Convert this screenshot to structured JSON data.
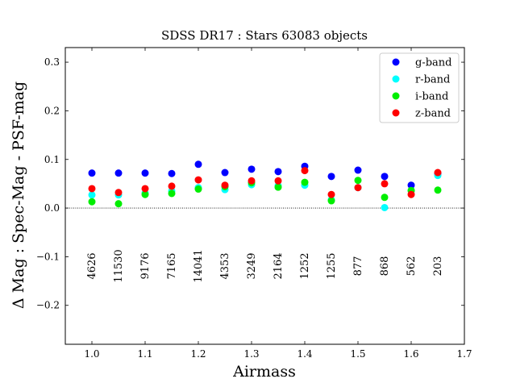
{
  "chart_data": {
    "type": "scatter",
    "title": "SDSS DR17 : Stars 63083 objects",
    "xlabel": "Airmass",
    "ylabel": "Δ Mag : Spec-Mag - PSF-mag",
    "xlim": [
      0.95,
      1.7
    ],
    "ylim": [
      -0.28,
      0.33
    ],
    "xticks": [
      "1.0",
      "1.1",
      "1.2",
      "1.3",
      "1.4",
      "1.5",
      "1.6",
      "1.7"
    ],
    "yticks": [
      "−0.2",
      "−0.1",
      "0.0",
      "0.1",
      "0.2",
      "0.3"
    ],
    "grid": false,
    "legend_position": "top-right",
    "reference_line": 0.0,
    "x": [
      1.0,
      1.05,
      1.1,
      1.15,
      1.2,
      1.25,
      1.3,
      1.35,
      1.4,
      1.45,
      1.5,
      1.55,
      1.6,
      1.65
    ],
    "counts": [
      "4626",
      "11530",
      "9176",
      "7165",
      "14041",
      "4353",
      "3249",
      "2164",
      "1252",
      "1255",
      "877",
      "868",
      "562",
      "203"
    ],
    "series": [
      {
        "name": "g-band",
        "color": "#0000ff",
        "values": [
          0.072,
          0.072,
          0.072,
          0.071,
          0.09,
          0.073,
          0.08,
          0.075,
          0.086,
          0.065,
          0.078,
          0.065,
          0.047,
          0.071
        ]
      },
      {
        "name": "r-band",
        "color": "#00ffff",
        "values": [
          0.027,
          0.027,
          0.031,
          0.035,
          0.042,
          0.038,
          0.048,
          0.046,
          0.047,
          0.017,
          0.042,
          0.001,
          0.036,
          0.067
        ]
      },
      {
        "name": "i-band",
        "color": "#00ee00",
        "values": [
          0.013,
          0.009,
          0.028,
          0.03,
          0.039,
          0.044,
          0.052,
          0.043,
          0.053,
          0.015,
          0.057,
          0.022,
          0.036,
          0.037
        ]
      },
      {
        "name": "z-band",
        "color": "#ff0000",
        "values": [
          0.04,
          0.032,
          0.04,
          0.045,
          0.058,
          0.047,
          0.056,
          0.056,
          0.077,
          0.028,
          0.042,
          0.05,
          0.028,
          0.073
        ]
      }
    ]
  }
}
